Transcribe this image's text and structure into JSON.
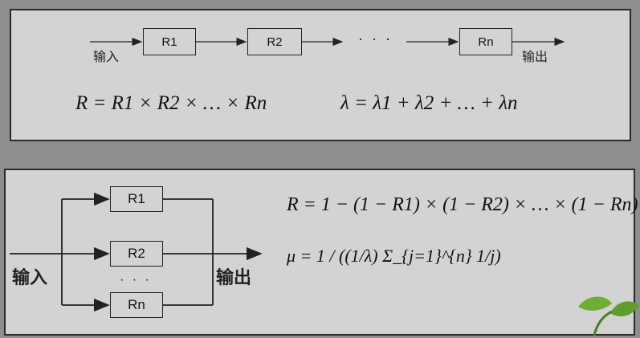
{
  "series": {
    "input_label": "输入",
    "output_label": "输出",
    "boxes": [
      "R1",
      "R2",
      "Rn"
    ],
    "ellipsis": "· · ·",
    "formula_R": "R = R1 × R2 × … × Rn",
    "formula_lambda": "λ = λ1 + λ2 + … + λn"
  },
  "parallel": {
    "input_label": "输入",
    "output_label": "输出",
    "boxes": [
      "R1",
      "R2",
      "Rn"
    ],
    "ellipsis": "· · ·",
    "formula_R": "R = 1 − (1 − R1) × (1 − R2) × … × (1 − Rn)",
    "formula_mu": "μ = 1 / ((1/λ) Σ_{j=1}^{n} 1/j)"
  },
  "colors": {
    "background": "#8e8e8e",
    "panel": "#d3d3d3",
    "ink": "#222222",
    "leaf": "#5f9e2e"
  },
  "icons": [
    "leaf-icon"
  ]
}
